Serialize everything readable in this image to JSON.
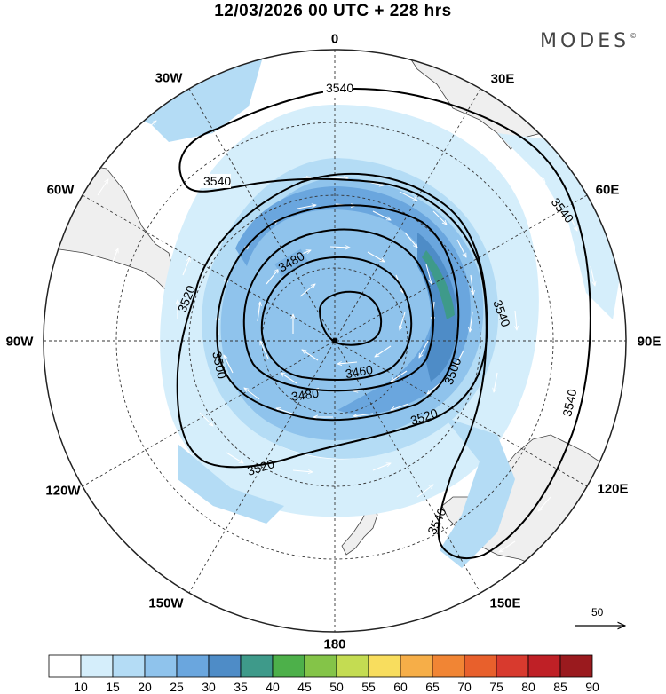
{
  "title": "12/03/2026  00 UTC  + 228 hrs",
  "brand": "MODES",
  "brand_mark": "©",
  "longitude_labels": {
    "l0": "0",
    "l30e": "30E",
    "l60e": "60E",
    "l90e": "90E",
    "l120e": "120E",
    "l150e": "150E",
    "l180": "180",
    "l150w": "150W",
    "l120w": "120W",
    "l90w": "90W",
    "l60w": "60W",
    "l30w": "30W"
  },
  "contour_labels": {
    "c3540a": "3540",
    "c3540b": "3540",
    "c3540c": "3540",
    "c3540d": "3540",
    "c3540e": "3540",
    "c3540f": "3540",
    "c3520a": "3520",
    "c3520b": "3520",
    "c3520c": "3520",
    "c3500a": "3500",
    "c3500b": "3500",
    "c3480a": "3480",
    "c3480b": "3480",
    "c3460": "3460"
  },
  "reference_vector": "50",
  "colorbar": {
    "labels": [
      "10",
      "15",
      "20",
      "25",
      "30",
      "35",
      "40",
      "45",
      "50",
      "55",
      "60",
      "65",
      "70",
      "75",
      "80",
      "85",
      "90"
    ],
    "colors": [
      "#ffffff",
      "#d5eefb",
      "#b4dcf5",
      "#8fc3ec",
      "#6aa6de",
      "#4e8cc7",
      "#3e9a8a",
      "#4db04a",
      "#84c448",
      "#c4dc52",
      "#f8dd5e",
      "#f6ae48",
      "#f18534",
      "#e8602c",
      "#d83a2e",
      "#bf2026",
      "#9a1a1e"
    ]
  }
}
